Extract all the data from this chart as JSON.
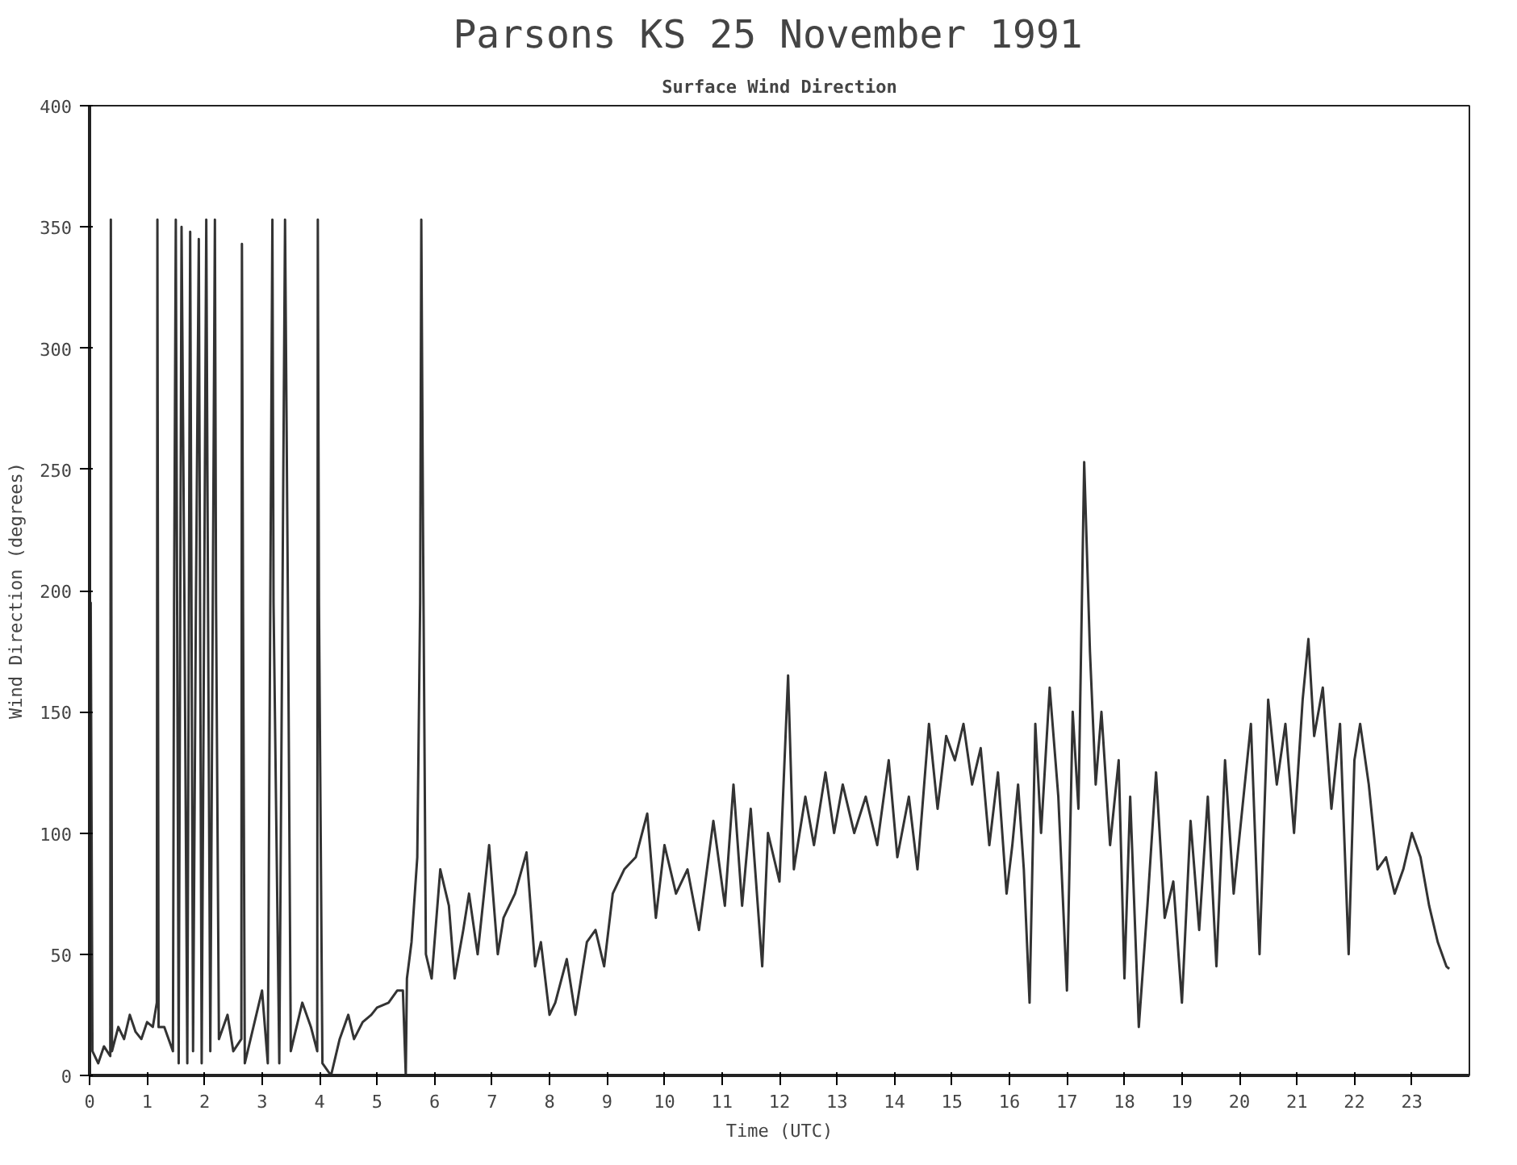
{
  "chart_data": {
    "type": "line",
    "title": "Parsons KS  25 November 1991",
    "subtitle": "Surface Wind Direction",
    "xlabel": "Time (UTC)",
    "ylabel": "Wind Direction (degrees)",
    "xlim": [
      0,
      24
    ],
    "ylim": [
      0,
      400
    ],
    "xticks": [
      0,
      1,
      2,
      3,
      4,
      5,
      6,
      7,
      8,
      9,
      10,
      11,
      12,
      13,
      14,
      15,
      16,
      17,
      18,
      19,
      20,
      21,
      22,
      23
    ],
    "yticks": [
      0,
      50,
      100,
      150,
      200,
      250,
      300,
      350,
      400
    ],
    "grid": false,
    "line_style": "solid",
    "series": [
      {
        "color": "#333333",
        "x": [
          0.0,
          0.02,
          0.05,
          0.15,
          0.25,
          0.36,
          0.37,
          0.39,
          0.5,
          0.6,
          0.7,
          0.8,
          0.9,
          1.0,
          1.1,
          1.17,
          1.18,
          1.2,
          1.3,
          1.45,
          1.47,
          1.5,
          1.55,
          1.6,
          1.65,
          1.7,
          1.75,
          1.8,
          1.85,
          1.9,
          1.95,
          2.03,
          2.06,
          2.1,
          2.18,
          2.2,
          2.25,
          2.4,
          2.5,
          2.64,
          2.65,
          2.67,
          2.7,
          2.85,
          3.0,
          3.1,
          3.18,
          3.2,
          3.3,
          3.4,
          3.45,
          3.5,
          3.7,
          3.85,
          3.96,
          3.97,
          3.99,
          4.05,
          4.2,
          4.35,
          4.5,
          4.6,
          4.75,
          4.9,
          5.0,
          5.2,
          5.35,
          5.45,
          5.5,
          5.52,
          5.6,
          5.7,
          5.75,
          5.77,
          5.8,
          5.85,
          5.95,
          6.1,
          6.25,
          6.35,
          6.5,
          6.6,
          6.75,
          6.95,
          7.1,
          7.2,
          7.4,
          7.6,
          7.75,
          7.85,
          8.0,
          8.1,
          8.3,
          8.45,
          8.65,
          8.8,
          8.95,
          9.1,
          9.3,
          9.5,
          9.7,
          9.85,
          10.0,
          10.2,
          10.4,
          10.6,
          10.85,
          11.05,
          11.2,
          11.35,
          11.5,
          11.7,
          11.8,
          12.0,
          12.15,
          12.25,
          12.45,
          12.6,
          12.8,
          12.95,
          13.1,
          13.3,
          13.5,
          13.7,
          13.9,
          14.05,
          14.25,
          14.4,
          14.6,
          14.75,
          14.9,
          15.05,
          15.2,
          15.35,
          15.5,
          15.65,
          15.8,
          15.95,
          16.05,
          16.15,
          16.25,
          16.35,
          16.45,
          16.55,
          16.7,
          16.85,
          17.0,
          17.1,
          17.2,
          17.3,
          17.4,
          17.5,
          17.6,
          17.75,
          17.9,
          18.0,
          18.1,
          18.25,
          18.4,
          18.55,
          18.7,
          18.85,
          19.0,
          19.15,
          19.3,
          19.45,
          19.6,
          19.75,
          19.9,
          20.05,
          20.2,
          20.35,
          20.5,
          20.65,
          20.8,
          20.95,
          21.1,
          21.2,
          21.3,
          21.45,
          21.6,
          21.75,
          21.9,
          22.0,
          22.1,
          22.25,
          22.4,
          22.55,
          22.7,
          22.85,
          23.0,
          23.15,
          23.3,
          23.45,
          23.6,
          23.65
        ],
        "values": [
          10,
          195,
          10,
          5,
          12,
          8,
          353,
          10,
          20,
          15,
          25,
          18,
          15,
          22,
          20,
          30,
          353,
          20,
          20,
          10,
          195,
          353,
          5,
          350,
          195,
          5,
          348,
          10,
          195,
          345,
          5,
          353,
          195,
          10,
          353,
          195,
          15,
          25,
          10,
          15,
          343,
          190,
          5,
          20,
          35,
          5,
          353,
          195,
          5,
          353,
          195,
          10,
          30,
          20,
          10,
          353,
          195,
          5,
          0,
          15,
          25,
          15,
          22,
          25,
          28,
          30,
          35,
          35,
          0,
          40,
          55,
          90,
          195,
          353,
          225,
          50,
          40,
          85,
          70,
          40,
          60,
          75,
          50,
          95,
          50,
          65,
          75,
          92,
          45,
          55,
          25,
          30,
          48,
          25,
          55,
          60,
          45,
          75,
          85,
          90,
          108,
          65,
          95,
          75,
          85,
          60,
          105,
          70,
          120,
          70,
          110,
          45,
          100,
          80,
          165,
          85,
          115,
          95,
          125,
          100,
          120,
          100,
          115,
          95,
          130,
          90,
          115,
          85,
          145,
          110,
          140,
          130,
          145,
          120,
          135,
          95,
          125,
          75,
          95,
          120,
          85,
          30,
          145,
          100,
          160,
          115,
          35,
          150,
          110,
          253,
          175,
          120,
          150,
          95,
          130,
          40,
          115,
          20,
          70,
          125,
          65,
          80,
          30,
          105,
          60,
          115,
          45,
          130,
          75,
          110,
          145,
          50,
          155,
          120,
          145,
          100,
          155,
          180,
          140,
          160,
          110,
          145,
          50,
          130,
          145,
          120,
          85,
          90,
          75,
          85,
          100,
          90,
          70,
          55,
          45,
          44
        ]
      }
    ]
  }
}
